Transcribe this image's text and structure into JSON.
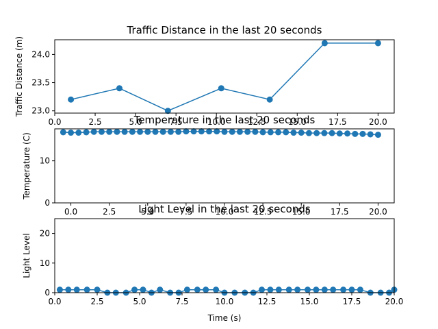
{
  "chart_data": [
    {
      "type": "line",
      "title": "Traffic Distance in the last 20 seconds",
      "xlabel": "",
      "ylabel": "Traffic Distance (m)",
      "xlim": [
        0,
        21
      ],
      "ylim": [
        22.96,
        24.26
      ],
      "xticks": [
        0,
        2.5,
        5,
        7.5,
        10,
        12.5,
        15,
        17.5,
        20
      ],
      "xtick_labels": [
        "0.0",
        "2.5",
        "5.0",
        "7.5",
        "10.0",
        "12.5",
        "15.0",
        "17.5",
        "20.0"
      ],
      "yticks": [
        23.0,
        23.5,
        24.0
      ],
      "ytick_labels": [
        "23.0",
        "23.5",
        "24.0"
      ],
      "color": "#1f77b4",
      "markers": true,
      "series": [
        {
          "x": [
            1.0,
            4.0,
            7.0,
            10.3,
            13.3,
            16.7,
            20.0
          ],
          "y": [
            23.2,
            23.4,
            23.0,
            23.4,
            23.2,
            24.2,
            24.2
          ]
        }
      ]
    },
    {
      "type": "line",
      "title": "Temperature in the last 20 seconds",
      "xlabel": "",
      "ylabel": "Temperature (C)",
      "xlim": [
        -1.05,
        21.05
      ],
      "ylim": [
        0,
        17.6
      ],
      "xticks": [
        0,
        2.5,
        5,
        7.5,
        10,
        12.5,
        15,
        17.5,
        20
      ],
      "xtick_labels": [
        "0.0",
        "2.5",
        "5.0",
        "7.5",
        "10.0",
        "12.5",
        "15.0",
        "17.5",
        "20.0"
      ],
      "yticks": [
        0,
        10
      ],
      "ytick_labels": [
        "0",
        "10"
      ],
      "color": "#1f77b4",
      "markers": true,
      "series": [
        {
          "x": [
            -0.5,
            0.0,
            0.5,
            1.0,
            1.5,
            2.0,
            2.5,
            3.0,
            3.5,
            4.0,
            4.5,
            5.0,
            5.5,
            6.0,
            6.5,
            7.0,
            7.5,
            8.0,
            8.5,
            9.0,
            9.5,
            10.0,
            10.5,
            11.0,
            11.5,
            12.0,
            12.5,
            13.0,
            13.5,
            14.0,
            14.5,
            15.0,
            15.5,
            16.0,
            16.5,
            17.0,
            17.5,
            18.0,
            18.5,
            19.0,
            19.5,
            20.0
          ],
          "y": [
            16.8,
            16.7,
            16.7,
            16.8,
            16.9,
            16.9,
            16.9,
            16.9,
            16.9,
            16.9,
            16.9,
            16.9,
            16.9,
            16.9,
            16.9,
            16.9,
            17.0,
            17.0,
            17.0,
            17.0,
            17.0,
            16.9,
            16.9,
            16.9,
            16.9,
            16.9,
            16.8,
            16.8,
            16.8,
            16.8,
            16.7,
            16.7,
            16.6,
            16.6,
            16.6,
            16.6,
            16.5,
            16.5,
            16.4,
            16.4,
            16.3,
            16.2
          ]
        }
      ]
    },
    {
      "type": "line",
      "title": "Light Level in the last 20 seconds",
      "xlabel": "Time (s)",
      "ylabel": "Light Level",
      "xlim": [
        0,
        20
      ],
      "ylim": [
        0,
        25
      ],
      "xticks": [
        0,
        2.5,
        5,
        7.5,
        10,
        12.5,
        15,
        17.5,
        20
      ],
      "xtick_labels": [
        "0.0",
        "2.5",
        "5.0",
        "7.5",
        "10.0",
        "12.5",
        "15.0",
        "17.5",
        "20.0"
      ],
      "yticks": [
        0,
        10,
        20
      ],
      "ytick_labels": [
        "0",
        "10",
        "20"
      ],
      "color": "#1f77b4",
      "markers": true,
      "series": [
        {
          "x": [
            0.3,
            0.8,
            1.3,
            1.9,
            2.5,
            3.1,
            3.6,
            4.2,
            4.7,
            5.2,
            5.7,
            6.2,
            6.8,
            7.3,
            7.8,
            8.4,
            8.9,
            9.5,
            10.0,
            10.6,
            11.2,
            11.7,
            12.2,
            12.7,
            13.2,
            13.8,
            14.3,
            14.9,
            15.4,
            15.9,
            16.4,
            17.0,
            17.5,
            18.0,
            18.6,
            19.2,
            19.7,
            20.0
          ],
          "y": [
            1,
            1,
            1,
            1,
            1,
            0,
            0,
            0,
            1,
            1,
            0,
            1,
            0,
            0,
            1,
            1,
            1,
            1,
            0,
            0,
            0,
            0,
            1,
            1,
            1,
            1,
            1,
            1,
            1,
            1,
            1,
            1,
            1,
            1,
            0,
            0,
            0,
            1
          ]
        }
      ]
    }
  ]
}
